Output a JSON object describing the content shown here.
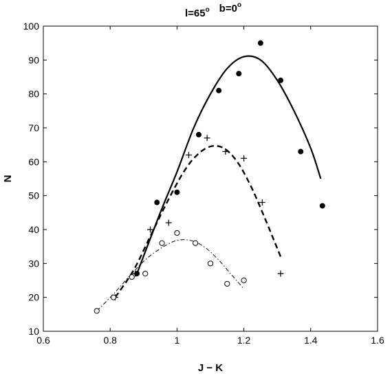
{
  "chart_data": {
    "type": "scatter",
    "title": {
      "parts": [
        {
          "text": "l=65",
          "sup": "o"
        },
        {
          "text": "b=0",
          "sup": "o"
        }
      ]
    },
    "xlabel": "J − K",
    "ylabel": "N",
    "xlim": [
      0.6,
      1.6
    ],
    "ylim": [
      10,
      100
    ],
    "xticks": [
      "0.6",
      "0.8",
      "1",
      "1.2",
      "1.4",
      "1.6"
    ],
    "yticks": [
      "10",
      "20",
      "30",
      "40",
      "50",
      "60",
      "70",
      "80",
      "90",
      "100"
    ],
    "grid": false,
    "series": [
      {
        "marker": "filled-circle",
        "line_style": "solid",
        "points": [
          [
            0.88,
            27
          ],
          [
            0.94,
            48
          ],
          [
            1.0,
            51
          ],
          [
            1.065,
            68
          ],
          [
            1.125,
            81
          ],
          [
            1.185,
            86
          ],
          [
            1.25,
            95
          ],
          [
            1.31,
            84
          ],
          [
            1.37,
            63
          ],
          [
            1.435,
            47
          ]
        ],
        "fit": [
          [
            0.88,
            27
          ],
          [
            0.95,
            45
          ],
          [
            1.0,
            57
          ],
          [
            1.05,
            70
          ],
          [
            1.1,
            80
          ],
          [
            1.15,
            87.5
          ],
          [
            1.2,
            91
          ],
          [
            1.25,
            90
          ],
          [
            1.3,
            84
          ],
          [
            1.35,
            75
          ],
          [
            1.4,
            64
          ],
          [
            1.43,
            55
          ]
        ]
      },
      {
        "marker": "plus",
        "line_style": "dashed",
        "points": [
          [
            0.815,
            20
          ],
          [
            0.875,
            27
          ],
          [
            0.92,
            40
          ],
          [
            0.975,
            42
          ],
          [
            1.035,
            62
          ],
          [
            1.09,
            67
          ],
          [
            1.145,
            63
          ],
          [
            1.2,
            61
          ],
          [
            1.255,
            48
          ],
          [
            1.31,
            27
          ]
        ],
        "fit": [
          [
            0.815,
            20
          ],
          [
            0.87,
            28
          ],
          [
            0.92,
            38
          ],
          [
            0.97,
            48
          ],
          [
            1.02,
            57
          ],
          [
            1.06,
            62
          ],
          [
            1.1,
            64.5
          ],
          [
            1.14,
            64
          ],
          [
            1.18,
            60
          ],
          [
            1.22,
            53
          ],
          [
            1.26,
            44
          ],
          [
            1.31,
            32
          ]
        ]
      },
      {
        "marker": "open-circle",
        "line_style": "dashdot",
        "points": [
          [
            0.76,
            16
          ],
          [
            0.81,
            20
          ],
          [
            0.865,
            26
          ],
          [
            0.905,
            27
          ],
          [
            0.955,
            36
          ],
          [
            1.0,
            39
          ],
          [
            1.055,
            36
          ],
          [
            1.1,
            30
          ],
          [
            1.15,
            24
          ],
          [
            1.2,
            25
          ]
        ],
        "fit": [
          [
            0.76,
            16
          ],
          [
            0.81,
            21
          ],
          [
            0.86,
            26.5
          ],
          [
            0.91,
            31.5
          ],
          [
            0.96,
            35
          ],
          [
            1.0,
            36.8
          ],
          [
            1.04,
            36.8
          ],
          [
            1.08,
            35
          ],
          [
            1.12,
            31.5
          ],
          [
            1.16,
            27
          ],
          [
            1.2,
            22.5
          ]
        ]
      }
    ]
  }
}
